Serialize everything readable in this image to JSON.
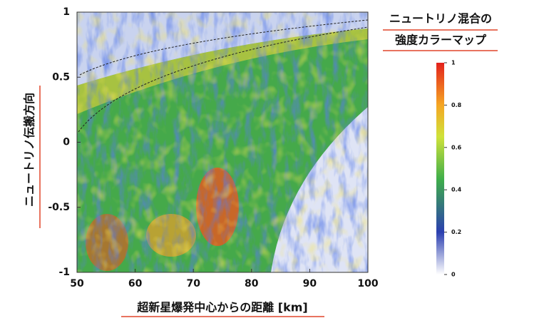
{
  "chart_data": {
    "type": "heatmap",
    "xlabel": "超新星爆発中心からの距離 [km]",
    "ylabel": "ニュートリノ伝搬方向",
    "colorbar_title": [
      "ニュートリノ混合の",
      "強度カラーマップ"
    ],
    "xlim": [
      50,
      100
    ],
    "xticks": [
      50,
      60,
      70,
      80,
      90,
      100
    ],
    "ylim": [
      -1,
      1
    ],
    "yticks": [
      -1,
      -0.5,
      0,
      0.5,
      1
    ],
    "clim": [
      0,
      1
    ],
    "cticks": [
      0,
      0.2,
      0.4,
      0.6,
      0.8,
      1
    ]
  }
}
